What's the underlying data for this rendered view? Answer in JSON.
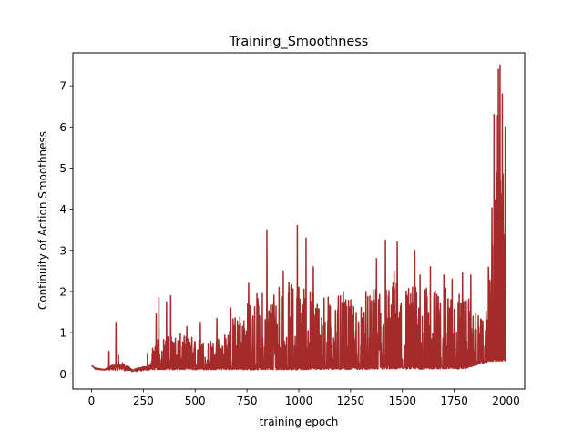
{
  "chart_data": {
    "type": "line",
    "title": "Training_Smoothness",
    "xlabel": "training epoch",
    "ylabel": "Continuity of Action Smoothness",
    "xlim": [
      -90,
      2090
    ],
    "ylim": [
      -0.37,
      7.8
    ],
    "x_ticks": [
      0,
      250,
      500,
      750,
      1000,
      1250,
      1500,
      1750,
      2000
    ],
    "x_tick_labels": [
      "0",
      "250",
      "500",
      "750",
      "1000",
      "1250",
      "1500",
      "1750",
      "2000"
    ],
    "y_ticks": [
      0,
      1,
      2,
      3,
      4,
      5,
      6,
      7
    ],
    "y_tick_labels": [
      "0",
      "1",
      "2",
      "3",
      "4",
      "5",
      "6",
      "7"
    ],
    "grid": false,
    "legend": "none",
    "series": [
      {
        "color": "#a52a2a",
        "x_start": 0,
        "x_end": 1999,
        "baseline": [
          [
            0,
            0.2
          ],
          [
            20,
            0.1
          ],
          [
            150,
            0.08
          ],
          [
            200,
            0.05
          ],
          [
            300,
            0.1
          ],
          [
            1000,
            0.1
          ],
          [
            1800,
            0.12
          ],
          [
            1850,
            0.2
          ],
          [
            1920,
            0.3
          ],
          [
            1999,
            0.3
          ]
        ],
        "envelope": [
          [
            0,
            0.2
          ],
          [
            60,
            0.12
          ],
          [
            100,
            0.3
          ],
          [
            150,
            0.4
          ],
          [
            200,
            0.15
          ],
          [
            280,
            0.3
          ],
          [
            300,
            0.8
          ],
          [
            400,
            1.0
          ],
          [
            500,
            0.9
          ],
          [
            600,
            0.8
          ],
          [
            650,
            1.2
          ],
          [
            700,
            1.5
          ],
          [
            800,
            2.0
          ],
          [
            900,
            2.2
          ],
          [
            1000,
            2.3
          ],
          [
            1100,
            2.0
          ],
          [
            1200,
            1.9
          ],
          [
            1300,
            1.7
          ],
          [
            1400,
            2.3
          ],
          [
            1500,
            2.3
          ],
          [
            1600,
            2.1
          ],
          [
            1700,
            2.1
          ],
          [
            1800,
            2.0
          ],
          [
            1860,
            1.5
          ],
          [
            1900,
            1.2
          ],
          [
            1930,
            4.0
          ],
          [
            1950,
            6.5
          ],
          [
            1999,
            5.5
          ]
        ],
        "spikes": [
          [
            84,
            0.55
          ],
          [
            118,
            1.25
          ],
          [
            130,
            0.45
          ],
          [
            270,
            0.5
          ],
          [
            312,
            1.45
          ],
          [
            325,
            1.85
          ],
          [
            362,
            1.75
          ],
          [
            382,
            1.9
          ],
          [
            460,
            1.15
          ],
          [
            525,
            1.25
          ],
          [
            605,
            1.35
          ],
          [
            672,
            1.6
          ],
          [
            758,
            2.2
          ],
          [
            846,
            3.5
          ],
          [
            905,
            2.1
          ],
          [
            925,
            2.5
          ],
          [
            993,
            3.6
          ],
          [
            1035,
            3.3
          ],
          [
            1070,
            2.6
          ],
          [
            1215,
            2.0
          ],
          [
            1324,
            2.0
          ],
          [
            1375,
            2.8
          ],
          [
            1418,
            3.25
          ],
          [
            1460,
            2.5
          ],
          [
            1475,
            3.2
          ],
          [
            1560,
            3.0
          ],
          [
            1585,
            2.4
          ],
          [
            1635,
            2.6
          ],
          [
            1700,
            2.4
          ],
          [
            1740,
            2.3
          ],
          [
            1790,
            2.45
          ],
          [
            1830,
            2.4
          ],
          [
            1942,
            6.3
          ],
          [
            1963,
            7.4
          ],
          [
            1971,
            7.5
          ],
          [
            1982,
            6.8
          ],
          [
            1996,
            6.0
          ]
        ]
      }
    ]
  }
}
